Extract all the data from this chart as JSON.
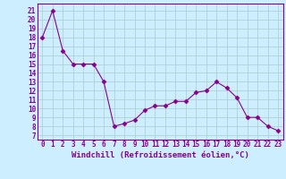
{
  "x": [
    0,
    1,
    2,
    3,
    4,
    5,
    6,
    7,
    8,
    9,
    10,
    11,
    12,
    13,
    14,
    15,
    16,
    17,
    18,
    19,
    20,
    21,
    22,
    23
  ],
  "y": [
    18,
    21,
    16.5,
    15,
    15,
    15,
    13,
    8,
    8.3,
    8.7,
    9.8,
    10.3,
    10.3,
    10.8,
    10.8,
    11.8,
    12,
    13,
    12.3,
    11.2,
    9,
    9,
    8,
    7.5
  ],
  "line_color": "#880088",
  "marker": "D",
  "marker_size": 2.5,
  "bg_color": "#cceeff",
  "grid_color": "#aacccc",
  "xlabel": "Windchill (Refroidissement éolien,°C)",
  "ylabel_ticks": [
    7,
    8,
    9,
    10,
    11,
    12,
    13,
    14,
    15,
    16,
    17,
    18,
    19,
    20,
    21
  ],
  "ylim": [
    6.5,
    21.8
  ],
  "xlim": [
    -0.5,
    23.5
  ],
  "tick_fontsize": 5.5,
  "xlabel_fontsize": 6.5
}
